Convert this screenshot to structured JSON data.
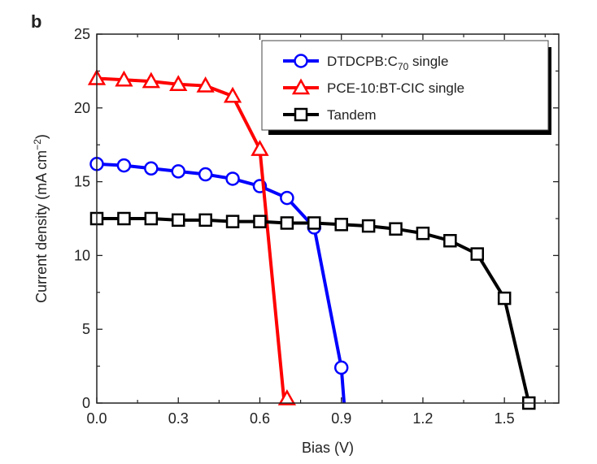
{
  "panel_label": "b",
  "chart_data": {
    "type": "line",
    "xlabel": "Bias (V)",
    "ylabel": "Current density (mA cm",
    "ylabel_sup": "−2",
    "ylabel_end": ")",
    "xlim": [
      0,
      1.7
    ],
    "ylim": [
      0,
      25
    ],
    "xticks": [
      "0.0",
      "0.3",
      "0.6",
      "0.9",
      "1.2",
      "1.5"
    ],
    "yticks": [
      "0",
      "5",
      "10",
      "15",
      "20",
      "25"
    ],
    "legend_position": "top-right",
    "series": [
      {
        "name": "DTDCPB:C",
        "name_sub": "70",
        "name_end": " single",
        "color": "#0000ff",
        "marker": "circle",
        "x": [
          0,
          0.1,
          0.2,
          0.3,
          0.4,
          0.5,
          0.6,
          0.7,
          0.8,
          0.9,
          0.91
        ],
        "y": [
          16.2,
          16.1,
          15.9,
          15.7,
          15.5,
          15.2,
          14.7,
          13.9,
          11.9,
          2.4,
          0
        ],
        "markers": [
          0,
          1,
          2,
          3,
          4,
          5,
          6,
          7,
          8,
          9
        ]
      },
      {
        "name": "PCE-10:BT-CIC single",
        "color": "#ff0000",
        "marker": "triangle",
        "x": [
          0,
          0.1,
          0.2,
          0.3,
          0.4,
          0.5,
          0.6,
          0.69,
          0.7
        ],
        "y": [
          22.0,
          21.9,
          21.8,
          21.6,
          21.5,
          20.8,
          17.2,
          0,
          0.3
        ],
        "markers": [
          0,
          1,
          2,
          3,
          4,
          5,
          6,
          8
        ]
      },
      {
        "name": "Tandem",
        "color": "#000000",
        "marker": "square",
        "x": [
          0,
          0.1,
          0.2,
          0.3,
          0.4,
          0.5,
          0.6,
          0.7,
          0.8,
          0.9,
          1.0,
          1.1,
          1.2,
          1.3,
          1.4,
          1.5,
          1.59
        ],
        "y": [
          12.5,
          12.5,
          12.5,
          12.4,
          12.4,
          12.3,
          12.3,
          12.2,
          12.2,
          12.1,
          12.0,
          11.8,
          11.5,
          11.0,
          10.1,
          7.1,
          0
        ],
        "markers": [
          0,
          1,
          2,
          3,
          4,
          5,
          6,
          7,
          8,
          9,
          10,
          11,
          12,
          13,
          14,
          15,
          16
        ]
      }
    ]
  }
}
